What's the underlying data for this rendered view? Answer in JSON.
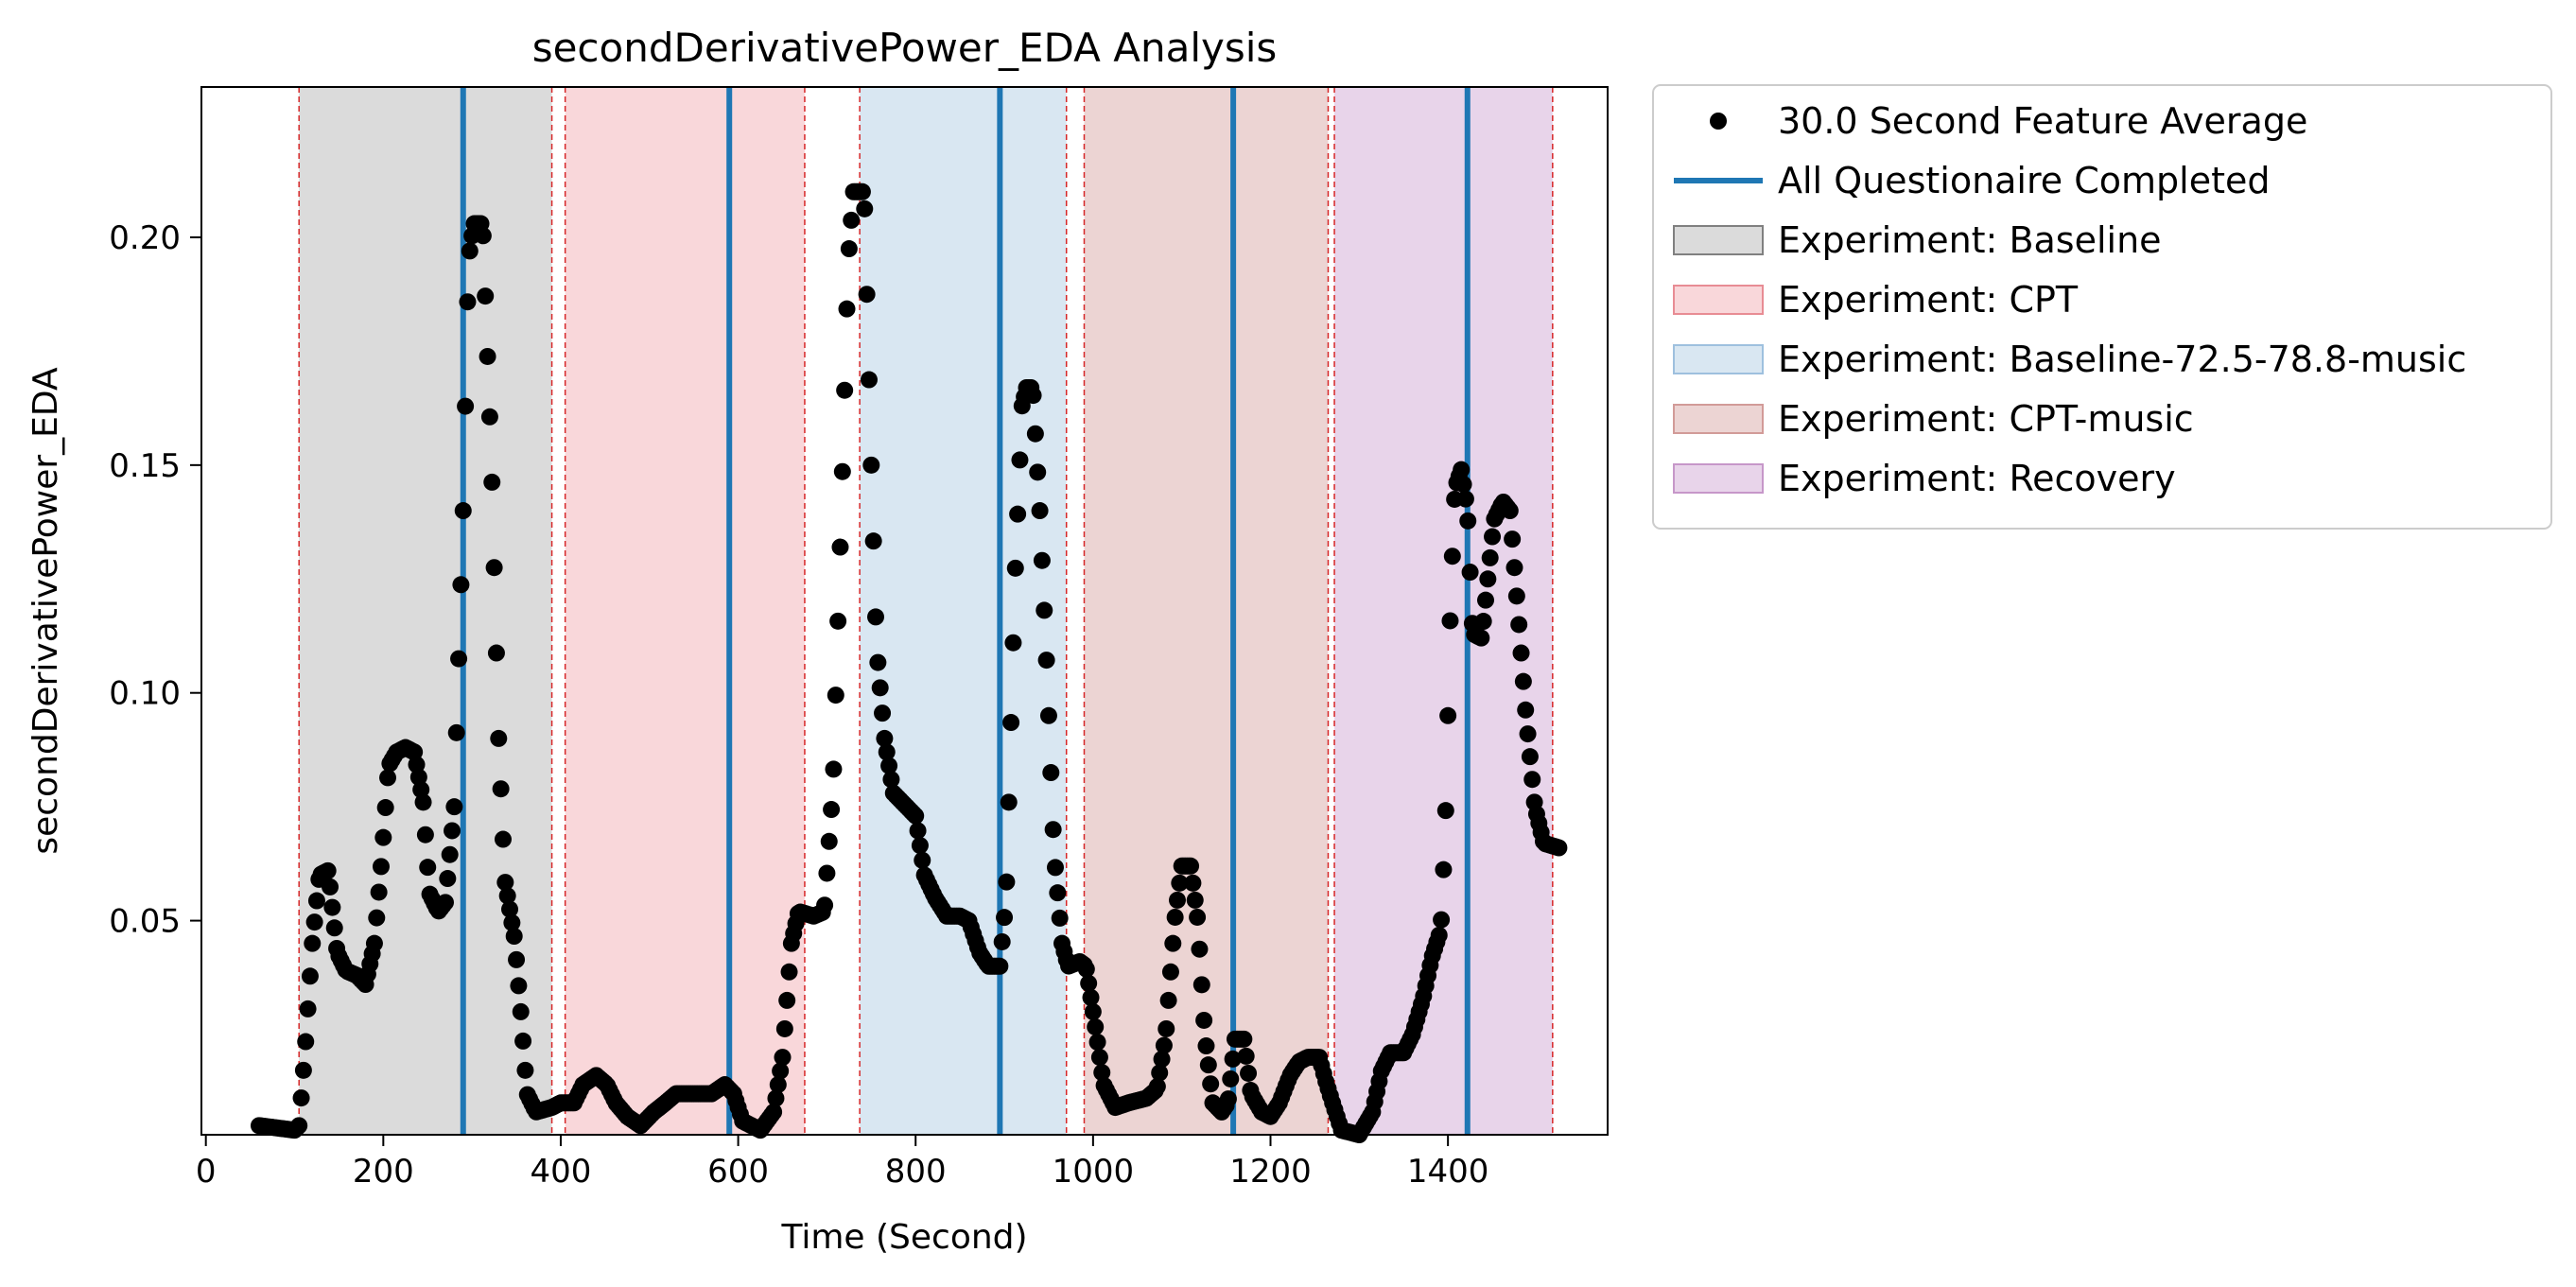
{
  "chart_data": {
    "type": "scatter",
    "title": "secondDerivativePower_EDA Analysis",
    "xlabel": "Time (Second)",
    "ylabel": "secondDerivativePower_EDA",
    "xlim": [
      -5,
      1580
    ],
    "ylim": [
      0.003,
      0.233
    ],
    "xticks": [
      0,
      200,
      400,
      600,
      800,
      1000,
      1200,
      1400
    ],
    "yticks": [
      0.05,
      0.1,
      0.15,
      0.2
    ],
    "ytick_labels": [
      "0.05",
      "0.10",
      "0.15",
      "0.20"
    ],
    "grid": false,
    "legend_placement": "outside-upper-right",
    "regions": [
      {
        "name": "Experiment: Baseline",
        "start": 105,
        "end": 390,
        "color": "#bdbdbd",
        "edge": "#808080"
      },
      {
        "name": "Experiment: CPT",
        "start": 405,
        "end": 675,
        "color": "#f4b6bc",
        "edge": "#e88c94"
      },
      {
        "name": "Experiment: Baseline-72.5-78.8-music",
        "start": 737,
        "end": 970,
        "color": "#bad3e8",
        "edge": "#9ec0de"
      },
      {
        "name": "Experiment: CPT-music",
        "start": 990,
        "end": 1265,
        "color": "#dcb0ae",
        "edge": "#d29b98"
      },
      {
        "name": "Experiment: Recovery",
        "start": 1272,
        "end": 1518,
        "color": "#d6b0d8",
        "edge": "#c697c9"
      }
    ],
    "boundary_lines": [
      105,
      390,
      405,
      675,
      737,
      970,
      990,
      1265,
      1272,
      1518
    ],
    "questionnaire_lines": {
      "name": "All Questionaire Completed",
      "color": "#1f77b4",
      "x": [
        290,
        590,
        895,
        1158,
        1422
      ]
    },
    "feature_series": {
      "name": "30.0 Second Feature Average",
      "color": "#000000",
      "step": 2.5,
      "points": [
        [
          60,
          0.005
        ],
        [
          100,
          0.004
        ],
        [
          105,
          0.005
        ],
        [
          112,
          0.022
        ],
        [
          120,
          0.045
        ],
        [
          128,
          0.06
        ],
        [
          138,
          0.061
        ],
        [
          148,
          0.043
        ],
        [
          158,
          0.039
        ],
        [
          170,
          0.038
        ],
        [
          180,
          0.036
        ],
        [
          190,
          0.045
        ],
        [
          198,
          0.063
        ],
        [
          206,
          0.084
        ],
        [
          215,
          0.087
        ],
        [
          225,
          0.088
        ],
        [
          235,
          0.087
        ],
        [
          245,
          0.076
        ],
        [
          252,
          0.056
        ],
        [
          262,
          0.052
        ],
        [
          270,
          0.054
        ],
        [
          280,
          0.075
        ],
        [
          290,
          0.14
        ],
        [
          296,
          0.195
        ],
        [
          302,
          0.203
        ],
        [
          312,
          0.203
        ],
        [
          322,
          0.15
        ],
        [
          330,
          0.09
        ],
        [
          337,
          0.059
        ],
        [
          348,
          0.046
        ],
        [
          355,
          0.03
        ],
        [
          362,
          0.012
        ],
        [
          372,
          0.008
        ],
        [
          390,
          0.009
        ],
        [
          400,
          0.01
        ],
        [
          415,
          0.01
        ],
        [
          425,
          0.014
        ],
        [
          440,
          0.016
        ],
        [
          452,
          0.014
        ],
        [
          462,
          0.01
        ],
        [
          475,
          0.007
        ],
        [
          490,
          0.005
        ],
        [
          505,
          0.008
        ],
        [
          518,
          0.01
        ],
        [
          530,
          0.012
        ],
        [
          570,
          0.012
        ],
        [
          585,
          0.014
        ],
        [
          595,
          0.012
        ],
        [
          605,
          0.006
        ],
        [
          625,
          0.004
        ],
        [
          640,
          0.008
        ],
        [
          650,
          0.02
        ],
        [
          660,
          0.045
        ],
        [
          668,
          0.052
        ],
        [
          685,
          0.051
        ],
        [
          697,
          0.052
        ],
        [
          707,
          0.08
        ],
        [
          717,
          0.145
        ],
        [
          724,
          0.195
        ],
        [
          730,
          0.21
        ],
        [
          742,
          0.21
        ],
        [
          750,
          0.15
        ],
        [
          756,
          0.11
        ],
        [
          765,
          0.09
        ],
        [
          775,
          0.078
        ],
        [
          790,
          0.075
        ],
        [
          800,
          0.073
        ],
        [
          810,
          0.06
        ],
        [
          822,
          0.055
        ],
        [
          835,
          0.051
        ],
        [
          850,
          0.051
        ],
        [
          860,
          0.05
        ],
        [
          872,
          0.043
        ],
        [
          882,
          0.04
        ],
        [
          895,
          0.04
        ],
        [
          902,
          0.055
        ],
        [
          912,
          0.125
        ],
        [
          920,
          0.163
        ],
        [
          925,
          0.167
        ],
        [
          932,
          0.167
        ],
        [
          940,
          0.14
        ],
        [
          948,
          0.105
        ],
        [
          956,
          0.065
        ],
        [
          965,
          0.045
        ],
        [
          972,
          0.04
        ],
        [
          985,
          0.041
        ],
        [
          992,
          0.04
        ],
        [
          1000,
          0.03
        ],
        [
          1012,
          0.014
        ],
        [
          1025,
          0.009
        ],
        [
          1040,
          0.01
        ],
        [
          1060,
          0.011
        ],
        [
          1072,
          0.013
        ],
        [
          1082,
          0.025
        ],
        [
          1092,
          0.05
        ],
        [
          1100,
          0.062
        ],
        [
          1110,
          0.062
        ],
        [
          1118,
          0.05
        ],
        [
          1126,
          0.025
        ],
        [
          1135,
          0.01
        ],
        [
          1145,
          0.008
        ],
        [
          1152,
          0.01
        ],
        [
          1160,
          0.024
        ],
        [
          1170,
          0.024
        ],
        [
          1178,
          0.012
        ],
        [
          1190,
          0.008
        ],
        [
          1200,
          0.007
        ],
        [
          1210,
          0.01
        ],
        [
          1222,
          0.016
        ],
        [
          1232,
          0.019
        ],
        [
          1242,
          0.02
        ],
        [
          1255,
          0.02
        ],
        [
          1262,
          0.015
        ],
        [
          1270,
          0.01
        ],
        [
          1280,
          0.004
        ],
        [
          1300,
          0.003
        ],
        [
          1315,
          0.008
        ],
        [
          1325,
          0.017
        ],
        [
          1335,
          0.021
        ],
        [
          1350,
          0.021
        ],
        [
          1360,
          0.025
        ],
        [
          1372,
          0.033
        ],
        [
          1382,
          0.042
        ],
        [
          1392,
          0.048
        ],
        [
          1397,
          0.07
        ],
        [
          1403,
          0.12
        ],
        [
          1408,
          0.145
        ],
        [
          1415,
          0.149
        ],
        [
          1422,
          0.14
        ],
        [
          1428,
          0.113
        ],
        [
          1438,
          0.112
        ],
        [
          1445,
          0.125
        ],
        [
          1452,
          0.138
        ],
        [
          1462,
          0.142
        ],
        [
          1470,
          0.14
        ],
        [
          1478,
          0.12
        ],
        [
          1488,
          0.095
        ],
        [
          1498,
          0.075
        ],
        [
          1508,
          0.067
        ],
        [
          1525,
          0.066
        ]
      ]
    }
  }
}
